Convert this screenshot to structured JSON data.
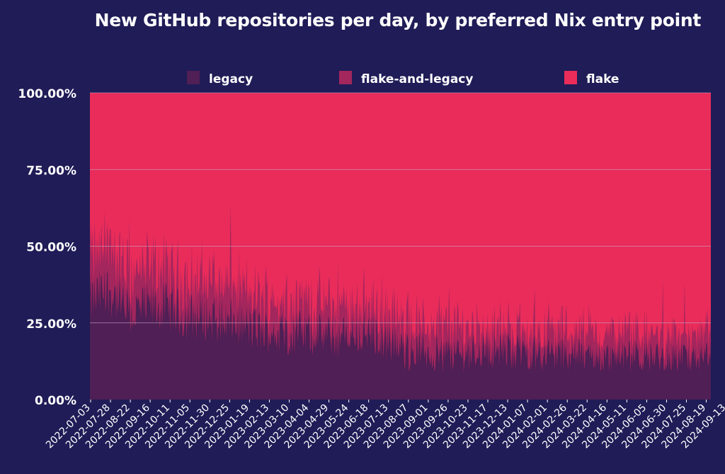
{
  "chart_data": {
    "type": "area",
    "stacked": true,
    "normalized": true,
    "title": "New GitHub repositories per day, by preferred Nix entry point",
    "xlabel": "",
    "ylabel": "",
    "ylim": [
      0,
      100
    ],
    "y_ticks": [
      "0.00%",
      "25.00%",
      "50.00%",
      "75.00%",
      "100.00%"
    ],
    "y_tick_values": [
      0,
      25,
      50,
      75,
      100
    ],
    "x_tick_labels": [
      "2022-07-03",
      "2022-07-28",
      "2022-08-22",
      "2022-09-16",
      "2022-10-11",
      "2022-11-05",
      "2022-11-30",
      "2022-12-25",
      "2023-01-19",
      "2023-02-13",
      "2023-03-10",
      "2023-04-04",
      "2023-04-29",
      "2023-05-24",
      "2023-06-18",
      "2023-07-13",
      "2023-08-07",
      "2023-09-01",
      "2023-09-26",
      "2023-10-23",
      "2023-11-17",
      "2023-12-13",
      "2024-01-07",
      "2024-02-01",
      "2024-02-26",
      "2024-03-22",
      "2024-04-16",
      "2024-05-11",
      "2024-06-05",
      "2024-06-30",
      "2024-07-25",
      "2024-08-19",
      "2024-09-13"
    ],
    "legend_position": "top",
    "legend": [
      {
        "name": "legacy",
        "color": "#4f1f55"
      },
      {
        "name": "flake-and-legacy",
        "color": "#a3265d"
      },
      {
        "name": "flake",
        "color": "#e92c5a"
      }
    ],
    "series": [
      {
        "name": "legacy",
        "approx_share_pct_at_ticks": [
          32,
          36,
          28,
          30,
          30,
          27,
          27,
          26,
          24,
          22,
          22,
          22,
          21,
          20,
          22,
          20,
          16,
          16,
          15,
          15,
          16,
          16,
          16,
          15,
          15,
          15,
          14,
          14,
          14,
          14,
          14,
          13,
          14
        ]
      },
      {
        "name": "flake-and-legacy",
        "approx_share_pct_at_ticks": [
          12,
          12,
          11,
          11,
          10,
          10,
          10,
          10,
          9,
          9,
          9,
          9,
          8,
          8,
          8,
          8,
          7,
          7,
          7,
          7,
          6,
          6,
          6,
          6,
          6,
          6,
          6,
          6,
          6,
          6,
          6,
          6,
          6
        ]
      },
      {
        "name": "flake",
        "approx_share_pct_at_ticks": [
          56,
          52,
          61,
          59,
          60,
          63,
          63,
          64,
          67,
          69,
          69,
          69,
          71,
          72,
          70,
          72,
          77,
          77,
          78,
          78,
          78,
          78,
          78,
          79,
          79,
          79,
          80,
          80,
          80,
          80,
          80,
          81,
          80
        ]
      }
    ],
    "colors": {
      "background": "#1f1c57",
      "text": "#ffffff",
      "gridline": "#c8a9c7"
    }
  }
}
